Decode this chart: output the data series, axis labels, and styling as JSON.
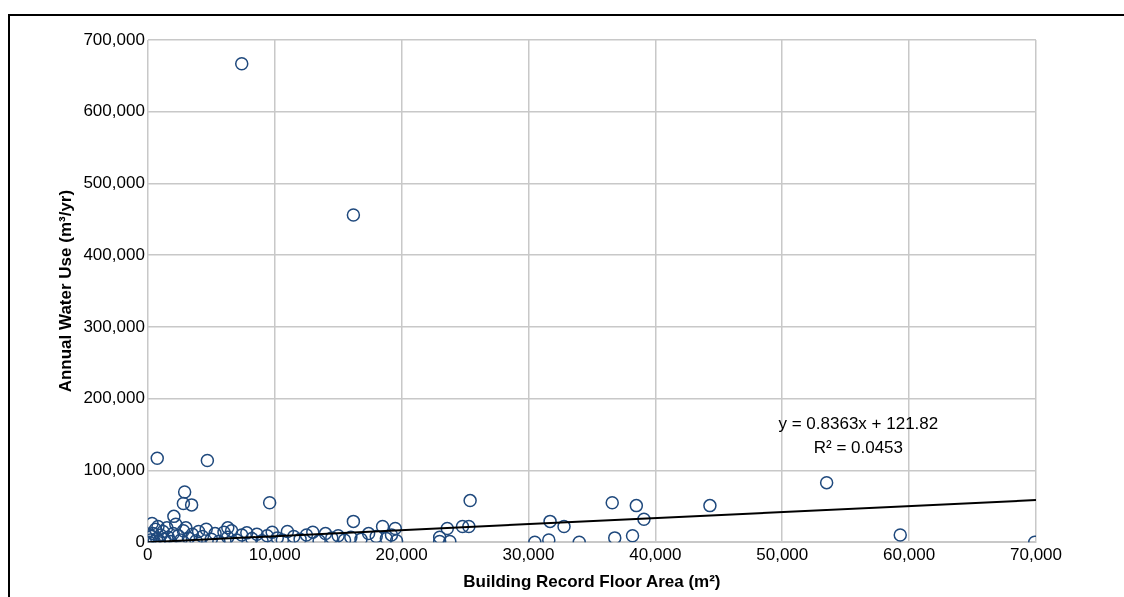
{
  "chart_data": {
    "type": "scatter",
    "xlabel": "Building Record Floor Area (m²)",
    "ylabel": "Annual Water Use (m³/yr)",
    "xlim": [
      0,
      70000
    ],
    "xticks": [
      {
        "value": 0,
        "label": "0"
      },
      {
        "value": 10000,
        "label": "10,000"
      },
      {
        "value": 20000,
        "label": "20,000"
      },
      {
        "value": 30000,
        "label": "30,000"
      },
      {
        "value": 40000,
        "label": "40,000"
      },
      {
        "value": 50000,
        "label": "50,000"
      },
      {
        "value": 60000,
        "label": "60,000"
      },
      {
        "value": 70000,
        "label": "70,000"
      }
    ],
    "ylim": [
      0,
      700000
    ],
    "yticks": [
      {
        "value": 0,
        "label": "0"
      },
      {
        "value": 100000,
        "label": "100,000"
      },
      {
        "value": 200000,
        "label": "200,000"
      },
      {
        "value": 300000,
        "label": "300,000"
      },
      {
        "value": 400000,
        "label": "400,000"
      },
      {
        "value": 500000,
        "label": "500,000"
      },
      {
        "value": 600000,
        "label": "600,000"
      },
      {
        "value": 700000,
        "label": "700,000"
      }
    ],
    "grid": true,
    "legend": false,
    "marker": "circle",
    "series": [
      {
        "color": "#1f497d",
        "x": [
          7400,
          16200,
          740,
          4690,
          2900,
          2800,
          3450,
          9600,
          25400,
          16200,
          2050,
          330,
          6300,
          18500,
          19500,
          23000,
          23600,
          24800,
          23800,
          23000,
          25300,
          30500,
          31600,
          31700,
          32800,
          34000,
          36600,
          36800,
          38200,
          38500,
          39100,
          44300,
          53500,
          59300,
          69900,
          100,
          200,
          300,
          400,
          500,
          600,
          700,
          800,
          900,
          1000,
          1200,
          1300,
          1500,
          1600,
          1800,
          2000,
          2200,
          2400,
          2600,
          2800,
          3000,
          3200,
          3500,
          3800,
          4000,
          4300,
          4600,
          5000,
          5300,
          5600,
          6000,
          6300,
          6600,
          7000,
          7400,
          7800,
          8200,
          8600,
          9000,
          9400,
          9800,
          10200,
          10600,
          11000,
          11500,
          12000,
          12500,
          13000,
          13500,
          14000,
          14500,
          15000,
          15500,
          16000,
          16800,
          17400,
          18000,
          18800,
          19200,
          19600
        ],
        "values": [
          667000,
          456000,
          117000,
          114000,
          70000,
          54000,
          52000,
          55000,
          58000,
          29000,
          36000,
          26000,
          20000,
          22000,
          19000,
          7000,
          19000,
          22000,
          1000,
          1000,
          22000,
          0,
          3000,
          29000,
          22000,
          0,
          55000,
          6000,
          9000,
          51000,
          32000,
          51000,
          83000,
          10000,
          0,
          0,
          3000,
          8000,
          12000,
          1000,
          18000,
          5000,
          22000,
          2000,
          10000,
          15000,
          4000,
          20000,
          7000,
          1000,
          12000,
          25000,
          9000,
          3000,
          16000,
          20000,
          6000,
          11000,
          2000,
          15000,
          8000,
          18000,
          4000,
          12000,
          1000,
          14000,
          7000,
          16000,
          3000,
          10000,
          13000,
          5000,
          11000,
          2000,
          9000,
          14000,
          6000,
          3000,
          15000,
          8000,
          4000,
          10000,
          14000,
          2000,
          12000,
          6000,
          9000,
          3000,
          7000,
          4000,
          12000,
          8000,
          5000,
          10000,
          2000
        ]
      },
      {
        "type": "line",
        "color": "#000000",
        "marker": "none",
        "x": [
          0,
          70000
        ],
        "values": [
          0,
          58700
        ]
      }
    ],
    "annotations": [
      "y = 0.8363x + 121.82",
      "R² = 0.0453"
    ]
  }
}
